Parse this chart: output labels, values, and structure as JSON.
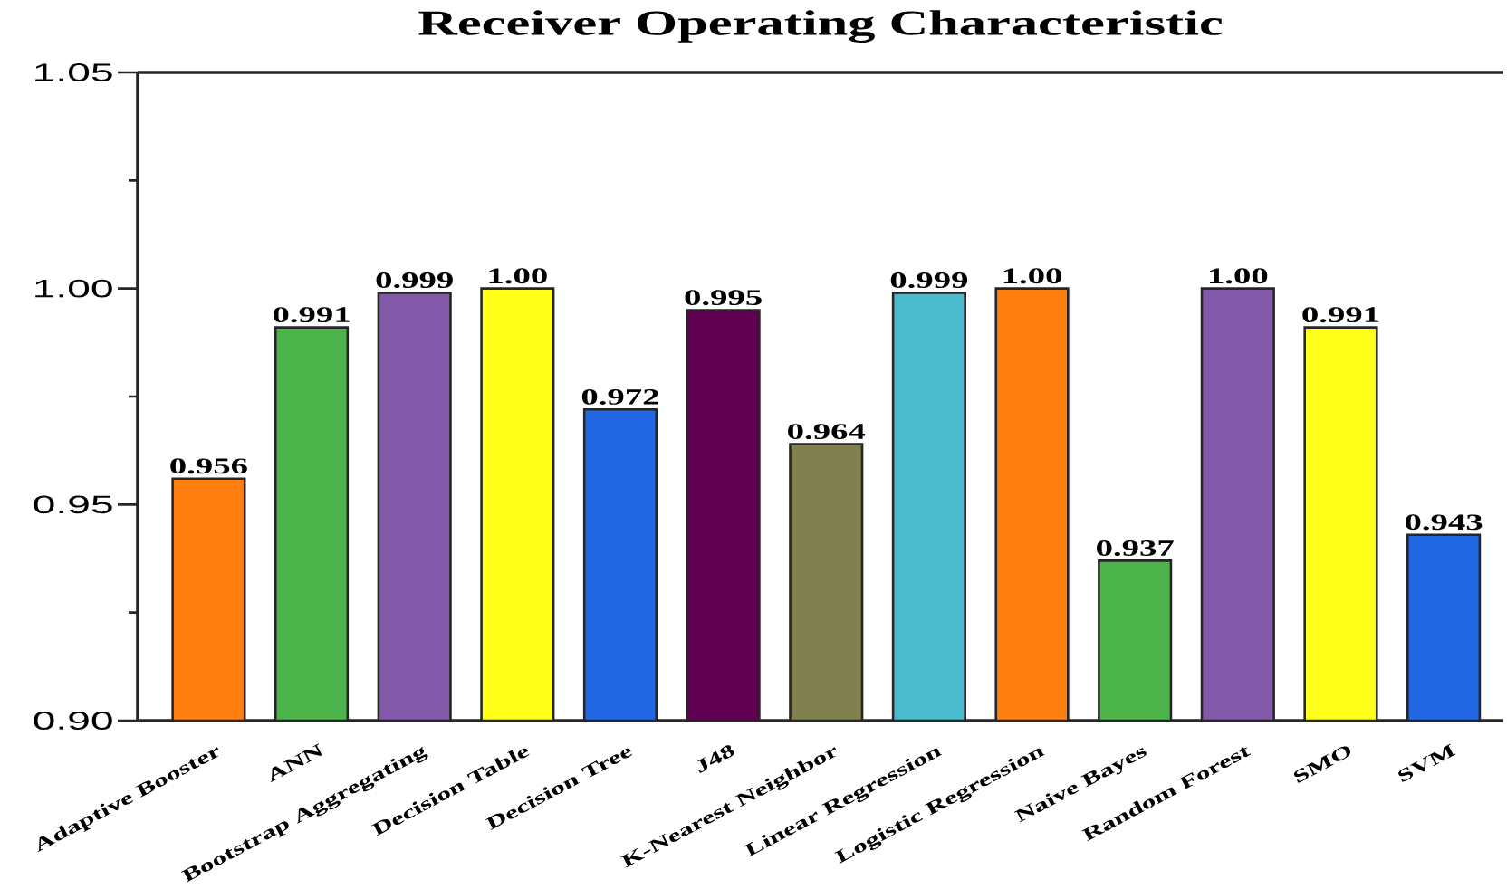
{
  "chart_data": {
    "type": "bar",
    "title": "Receiver Operating Characteristic",
    "categories": [
      "Adaptive Booster",
      "ANN",
      "Bootstrap Aggregating",
      "Decision Table",
      "Decision Tree",
      "J48",
      "K-Nearest Neighbor",
      "Linear Regression",
      "Logistic Regression",
      "Naive Bayes",
      "Random Forest",
      "SMO",
      "SVM"
    ],
    "values": [
      0.956,
      0.991,
      0.999,
      1.0,
      0.972,
      0.995,
      0.964,
      0.999,
      1.0,
      0.937,
      1.0,
      0.991,
      0.943
    ],
    "value_labels": [
      "0.956",
      "0.991",
      "0.999",
      "1.00",
      "0.972",
      "0.995",
      "0.964",
      "0.999",
      "1.00",
      "0.937",
      "1.00",
      "0.991",
      "0.943"
    ],
    "colors": [
      "#ff8010",
      "#4cb44a",
      "#835aaa",
      "#ffff1a",
      "#2268e5",
      "#5f0051",
      "#808050",
      "#4bbcce",
      "#ff8010",
      "#4cb44a",
      "#835aaa",
      "#ffff1a",
      "#2268e5"
    ],
    "ylim": [
      0.9,
      1.05
    ],
    "yticks": [
      {
        "value": 0.9,
        "label": "0.90"
      },
      {
        "value": 0.95,
        "label": "0.95"
      },
      {
        "value": 1.0,
        "label": "1.00"
      },
      {
        "value": 1.05,
        "label": "1.05"
      }
    ]
  }
}
